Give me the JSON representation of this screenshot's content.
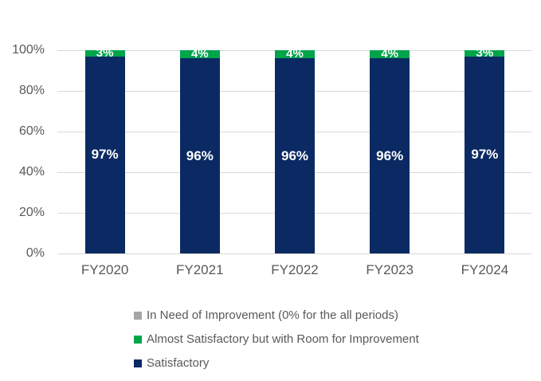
{
  "chart_data": {
    "type": "bar",
    "stacked": true,
    "title": "",
    "xlabel": "",
    "ylabel": "",
    "categories": [
      "FY2020",
      "FY2021",
      "FY2022",
      "FY2023",
      "FY2024"
    ],
    "series": [
      {
        "name": "Satisfactory",
        "color": "#0B2A63",
        "values": [
          97,
          96,
          96,
          96,
          97
        ],
        "labels": [
          "97%",
          "96%",
          "96%",
          "96%",
          "97%"
        ]
      },
      {
        "name": "Almost Satisfactory but with Room for Improvement",
        "color": "#00A44A",
        "values": [
          3,
          4,
          4,
          4,
          3
        ],
        "labels": [
          "3%",
          "4%",
          "4%",
          "4%",
          "3%"
        ]
      },
      {
        "name": "In Need of Improvement (0% for the all periods)",
        "color": "#A6A6A6",
        "values": [
          0,
          0,
          0,
          0,
          0
        ],
        "labels": [
          "",
          "",
          "",
          "",
          ""
        ]
      }
    ],
    "ylim": [
      0,
      100
    ],
    "y_tick_step": 20,
    "y_ticks": [
      "0%",
      "20%",
      "40%",
      "60%",
      "80%",
      "100%"
    ],
    "grid": true,
    "legend_position": "bottom"
  },
  "legend": {
    "items": [
      {
        "label": "In Need of Improvement (0% for the all periods)",
        "color": "#A6A6A6"
      },
      {
        "label": "Almost Satisfactory but with Room for Improvement",
        "color": "#00A44A"
      },
      {
        "label": "Satisfactory",
        "color": "#0B2A63"
      }
    ]
  },
  "colors": {
    "background": "#FFFFFF",
    "gridline": "#D9D9D9",
    "axis_line": "#D9D9D9",
    "axis_text": "#595959",
    "legend_text": "#595959",
    "bar_label_text": "#FFFFFF"
  }
}
